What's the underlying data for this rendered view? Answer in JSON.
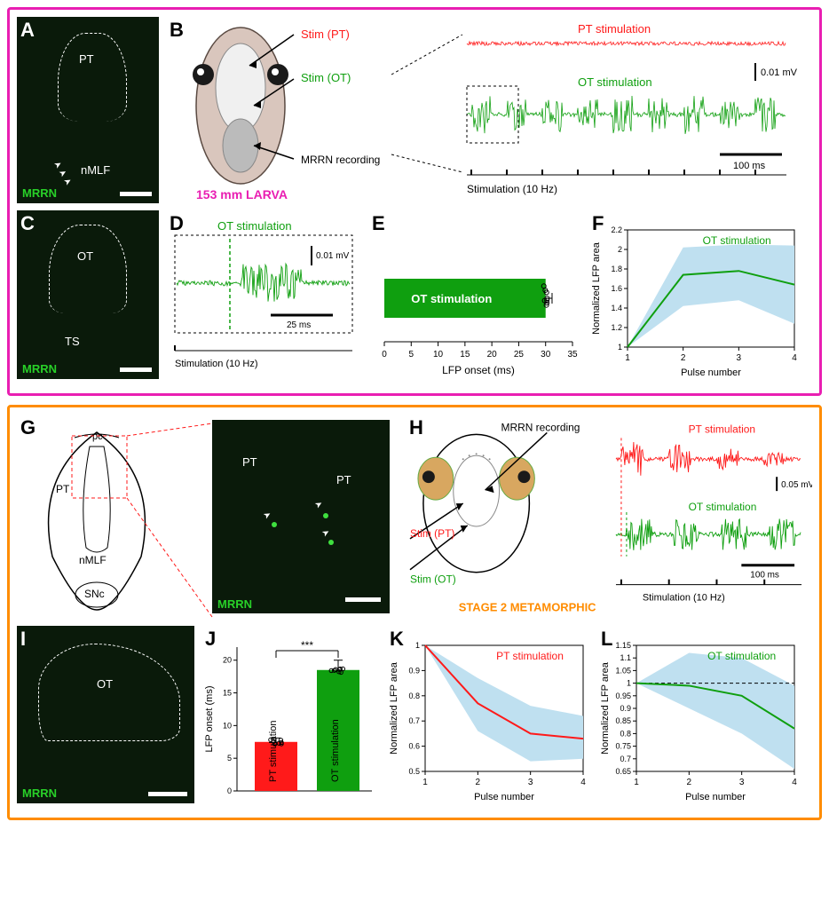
{
  "figure": {
    "larva_box_color": "#e91eb2",
    "meta_box_color": "#ff8c00",
    "colors": {
      "pt": "#ff1a1a",
      "ot": "#0f9f0f",
      "ot_dark": "#0a7a0a",
      "band": "#bfe0f0",
      "black": "#000000",
      "white": "#ffffff",
      "micrograph_bg": "#0a1a0a",
      "micrograph_green": "#28d028"
    }
  },
  "panelA": {
    "label": "A",
    "mrrn": "MRRN",
    "pt_label": "PT",
    "nmlf_label": "nMLF"
  },
  "panelB": {
    "label": "B",
    "stim_pt": "Stim (PT)",
    "stim_ot": "Stim (OT)",
    "mrrn_rec": "MRRN recording",
    "specimen": "153 mm LARVA",
    "pt_title": "PT stimulation",
    "ot_title": "OT stimulation",
    "y_scale": "0.01 mV",
    "x_scale": "100 ms",
    "stim_caption": "Stimulation (10 Hz)"
  },
  "panelC": {
    "label": "C",
    "mrrn": "MRRN",
    "ot_label": "OT",
    "ts_label": "TS"
  },
  "panelD": {
    "label": "D",
    "title": "OT stimulation",
    "y_scale": "0.01 mV",
    "x_scale": "25 ms",
    "stim_caption": "Stimulation (10 Hz)"
  },
  "panelE": {
    "label": "E",
    "bar_label": "OT stimulation",
    "bar_value": 30,
    "bar_sd": 1.2,
    "xaxis": "LFP onset (ms)",
    "xlim": [
      0,
      35
    ],
    "xtick_step": 5,
    "bar_color": "#0f9f0f"
  },
  "panelF": {
    "label": "F",
    "title": "OT stimulation",
    "yaxis": "Normalized LFP area",
    "xaxis": "Pulse number",
    "ylim": [
      1.0,
      2.2
    ],
    "ytick_step": 0.2,
    "xlim": [
      1,
      4
    ],
    "x": [
      1,
      2,
      3,
      4
    ],
    "mean": [
      1.0,
      1.74,
      1.78,
      1.64
    ],
    "lo": [
      1.0,
      1.42,
      1.48,
      1.24
    ],
    "hi": [
      1.0,
      2.02,
      2.05,
      2.04
    ],
    "line_color": "#0f9f0f",
    "band_color": "#bfe0f0"
  },
  "panelG": {
    "label": "G",
    "pc": "pc",
    "pt": "PT",
    "nmlf": "nMLF",
    "snc": "SNc",
    "mrrn": "MRRN"
  },
  "panelH": {
    "label": "H",
    "mrrn_rec": "MRRN recording",
    "stim_pt": "Stim (PT)",
    "stim_ot": "Stim (OT)",
    "pt_title": "PT stimulation",
    "ot_title": "OT stimulation",
    "y_scale": "0.05 mV",
    "x_scale": "100 ms",
    "stim_caption": "Stimulation (10 Hz)",
    "specimen": "STAGE 2 METAMORPHIC"
  },
  "panelI": {
    "label": "I",
    "mrrn": "MRRN",
    "ot_label": "OT"
  },
  "panelJ": {
    "label": "J",
    "sig": "***",
    "yaxis": "LFP onset (ms)",
    "ylim": [
      0,
      22
    ],
    "ytick_step": 5,
    "bars": [
      {
        "label": "PT stimulation",
        "value": 7.5,
        "sd": 0.6,
        "color": "#ff1a1a"
      },
      {
        "label": "OT stimulation",
        "value": 18.5,
        "sd": 1.5,
        "color": "#0f9f0f"
      }
    ]
  },
  "panelK": {
    "label": "K",
    "title": "PT stimulation",
    "yaxis": "Normalized LFP area",
    "xaxis": "Pulse number",
    "ylim": [
      0.5,
      1.0
    ],
    "ytick_step": 0.1,
    "xlim": [
      1,
      4
    ],
    "x": [
      1,
      2,
      3,
      4
    ],
    "mean": [
      1.0,
      0.77,
      0.65,
      0.63
    ],
    "lo": [
      1.0,
      0.66,
      0.54,
      0.55
    ],
    "hi": [
      1.0,
      0.87,
      0.76,
      0.72
    ],
    "line_color": "#ff1a1a",
    "band_color": "#bfe0f0"
  },
  "panelL": {
    "label": "L",
    "title": "OT stimulation",
    "yaxis": "Normalized LFP area",
    "xaxis": "Pulse number",
    "ylim": [
      0.65,
      1.15
    ],
    "yticks": [
      0.65,
      0.7,
      0.75,
      0.8,
      0.85,
      0.9,
      0.95,
      1.0,
      1.05,
      1.1,
      1.15
    ],
    "xlim": [
      1,
      4
    ],
    "x": [
      1,
      2,
      3,
      4
    ],
    "mean": [
      1.0,
      0.99,
      0.95,
      0.82
    ],
    "lo": [
      1.0,
      0.9,
      0.8,
      0.66
    ],
    "hi": [
      1.0,
      1.12,
      1.1,
      0.99
    ],
    "line_color": "#0f9f0f",
    "band_color": "#bfe0f0"
  }
}
